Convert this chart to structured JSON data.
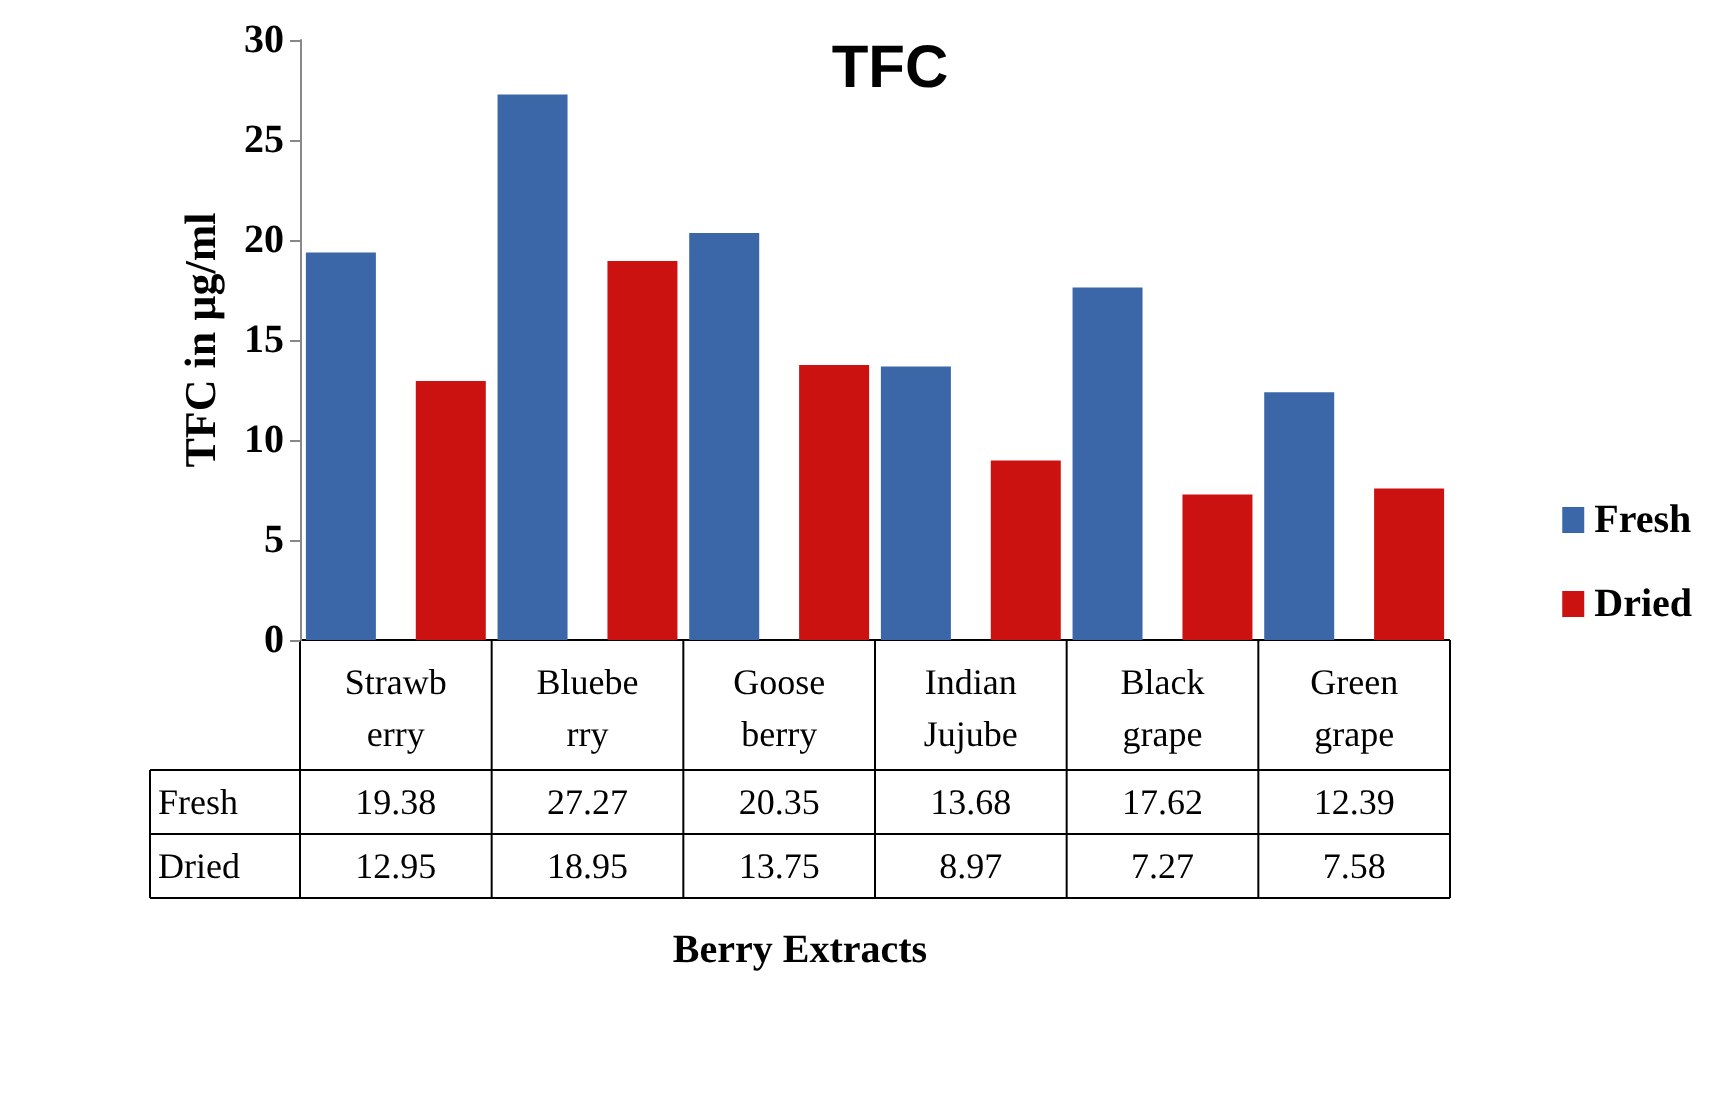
{
  "chart_data": {
    "type": "bar",
    "title": "TFC",
    "xlabel": "Berry Extracts",
    "ylabel": "TFC in µg/ml",
    "categories": [
      "Strawb\nerry",
      "Bluebe\nrry",
      "Goose\nberry",
      "Indian\nJujube",
      "Black\ngrape",
      "Green\ngrape"
    ],
    "series": [
      {
        "name": "Fresh",
        "color": "#3b67a9",
        "values": [
          19.38,
          27.27,
          20.35,
          13.68,
          17.62,
          12.39
        ]
      },
      {
        "name": "Dried",
        "color": "#cc1111",
        "values": [
          12.95,
          18.95,
          13.75,
          8.97,
          7.27,
          7.58
        ]
      }
    ],
    "ylim": [
      0,
      30
    ],
    "yticks": [
      0,
      5,
      10,
      15,
      20,
      25,
      30
    ],
    "grid": false,
    "legend": "right",
    "data_labels": true
  }
}
